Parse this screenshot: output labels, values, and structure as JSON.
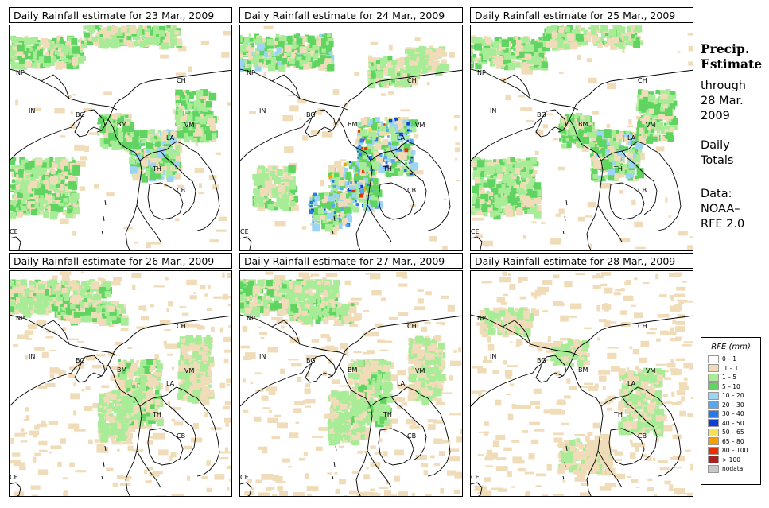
{
  "panels": [
    {
      "title": "Daily Rainfall estimate for  23 Mar., 2009",
      "wetness": "medium",
      "seed": 23
    },
    {
      "title": "Daily Rainfall estimate for  24 Mar., 2009",
      "wetness": "high",
      "seed": 24
    },
    {
      "title": "Daily Rainfall estimate for  25 Mar., 2009",
      "wetness": "medium",
      "seed": 25
    },
    {
      "title": "Daily Rainfall estimate for  26 Mar., 2009",
      "wetness": "light",
      "seed": 26
    },
    {
      "title": "Daily Rainfall estimate for  27 Mar., 2009",
      "wetness": "light",
      "seed": 27
    },
    {
      "title": "Daily Rainfall estimate for  28 Mar., 2009",
      "wetness": "dry",
      "seed": 28
    }
  ],
  "country_labels": [
    "NP",
    "CH",
    "IN",
    "BG",
    "BM",
    "VM",
    "LA",
    "TH",
    "CB",
    "CE"
  ],
  "sidebar": {
    "heading_line1": "Precip.",
    "heading_line2": "Estimate",
    "through_line1": "through",
    "through_line2": "28 Mar.",
    "through_line3": "2009",
    "totals_line1": "Daily",
    "totals_line2": "Totals",
    "data_line1": "Data:",
    "data_line2": "NOAA–",
    "data_line3": "RFE 2.0"
  },
  "legend": {
    "title": "RFE (mm)",
    "items": [
      {
        "label": "0 – 1",
        "color": "#ffffff"
      },
      {
        "label": ".1 – 1",
        "color": "#f0dcb8"
      },
      {
        "label": "1 – 5",
        "color": "#a8ec98"
      },
      {
        "label": "5 – 10",
        "color": "#60d460"
      },
      {
        "label": "10 – 20",
        "color": "#9cd4f4"
      },
      {
        "label": "20 – 30",
        "color": "#58a8f0"
      },
      {
        "label": "30 – 40",
        "color": "#2878e8"
      },
      {
        "label": "40 – 50",
        "color": "#1040d0"
      },
      {
        "label": "50 – 65",
        "color": "#f8e058"
      },
      {
        "label": "65 – 80",
        "color": "#f8a000"
      },
      {
        "label": "80 – 100",
        "color": "#e83000"
      },
      {
        "label": "> 100",
        "color": "#a82020"
      },
      {
        "label": "nodata",
        "color": "#c8c8c8"
      }
    ]
  }
}
